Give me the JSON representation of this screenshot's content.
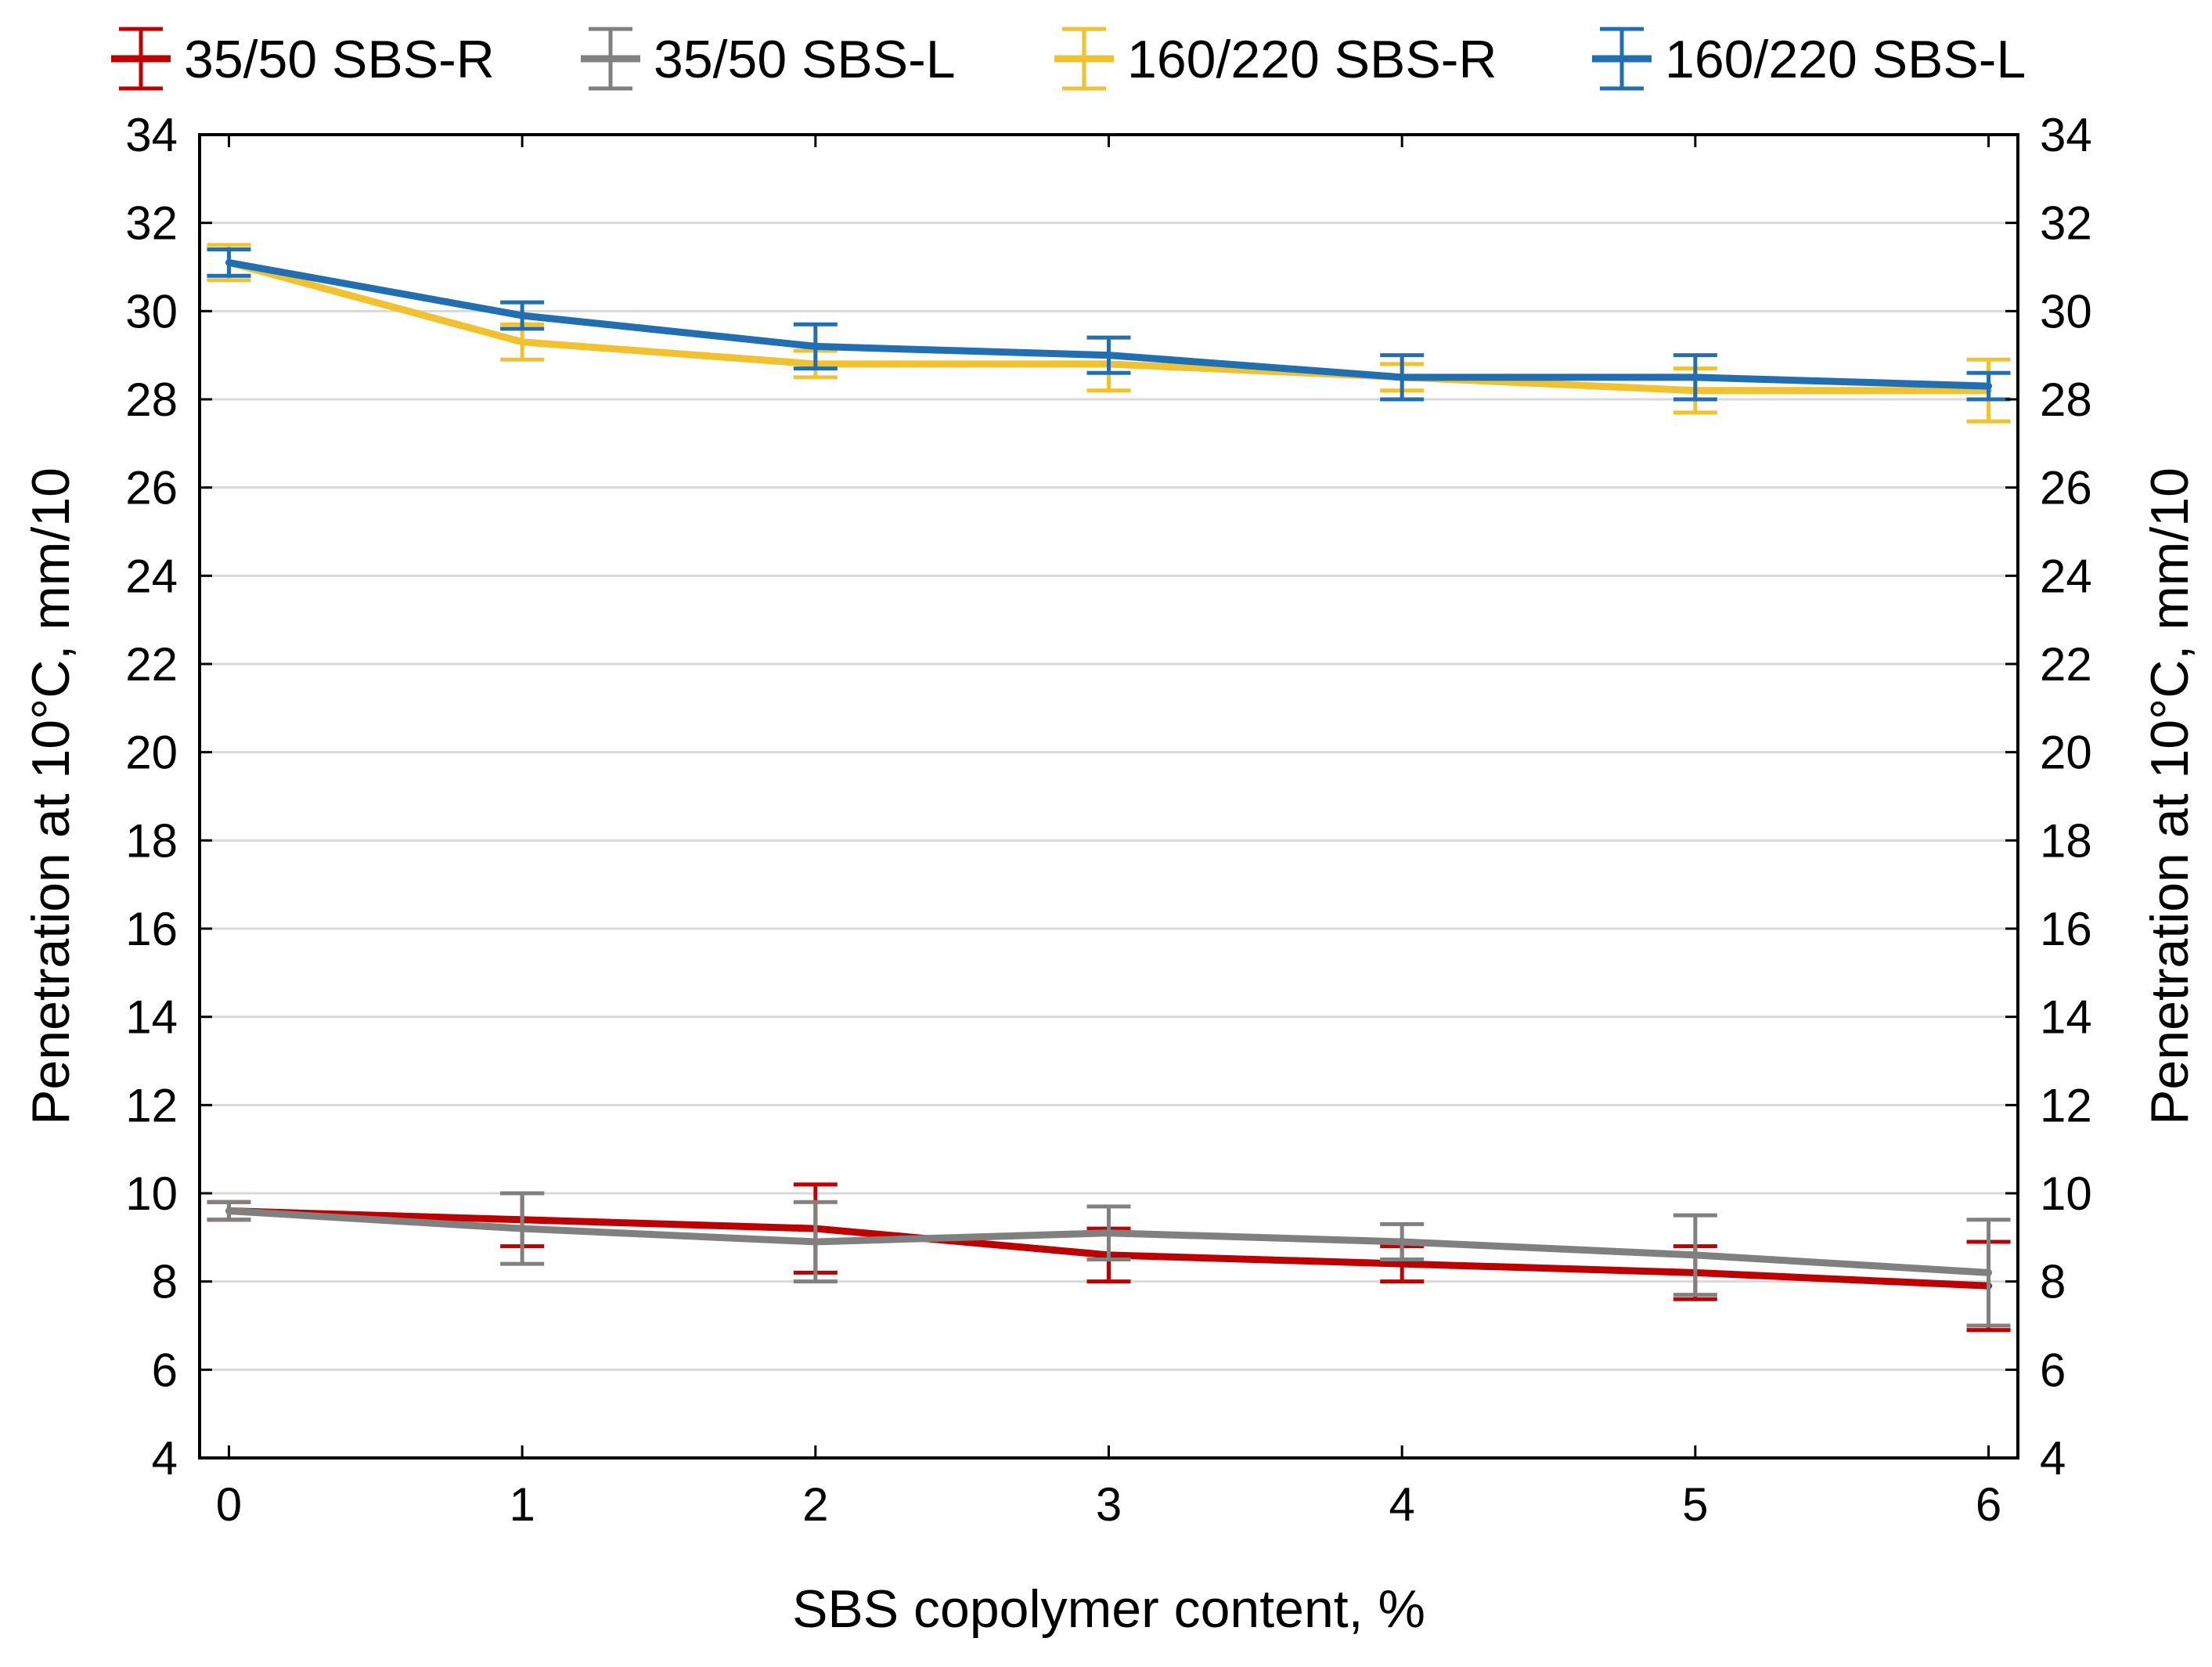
{
  "chart_data": {
    "type": "line",
    "title": "",
    "xlabel": "SBS copolymer content, %",
    "ylabel": "Penetration at 10°C, mm/10",
    "ylabel_right": "Penetration at 10°C, mm/10",
    "x": [
      0,
      1,
      2,
      3,
      4,
      5,
      6
    ],
    "x_ticks": [
      "0",
      "1",
      "2",
      "3",
      "4",
      "5",
      "6"
    ],
    "xlim": [
      -0.1,
      6.1
    ],
    "ylim": [
      4,
      34
    ],
    "y_ticks": [
      "4",
      "6",
      "8",
      "10",
      "12",
      "14",
      "16",
      "18",
      "20",
      "22",
      "24",
      "26",
      "28",
      "30",
      "32",
      "34"
    ],
    "grid": "horizontal",
    "legend_position": "top",
    "series": [
      {
        "name": "35/50 SBS-R",
        "color": "#c00000",
        "values": [
          9.6,
          9.4,
          9.2,
          8.6,
          8.4,
          8.2,
          7.9
        ],
        "error": [
          0.2,
          0.6,
          1.0,
          0.6,
          0.4,
          0.6,
          1.0
        ]
      },
      {
        "name": "35/50 SBS-L",
        "color": "#808080",
        "values": [
          9.6,
          9.2,
          8.9,
          9.1,
          8.9,
          8.6,
          8.2
        ],
        "error": [
          0.2,
          0.8,
          0.9,
          0.6,
          0.4,
          0.9,
          1.2
        ]
      },
      {
        "name": "160/220 SBS-R",
        "color": "#f2c12e",
        "values": [
          31.1,
          29.3,
          28.8,
          28.8,
          28.5,
          28.2,
          28.2
        ],
        "error": [
          0.4,
          0.4,
          0.3,
          0.6,
          0.3,
          0.5,
          0.7
        ]
      },
      {
        "name": "160/220 SBS-L",
        "color": "#1f6fb2",
        "values": [
          31.1,
          29.9,
          29.2,
          29.0,
          28.5,
          28.5,
          28.3
        ],
        "error": [
          0.3,
          0.3,
          0.5,
          0.4,
          0.5,
          0.5,
          0.3
        ]
      }
    ]
  }
}
